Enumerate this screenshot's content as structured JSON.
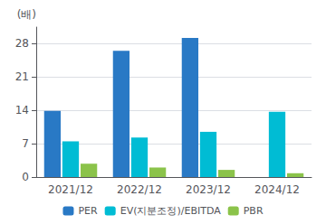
{
  "chart_data": {
    "type": "bar",
    "categories": [
      "2021/12",
      "2022/12",
      "2023/12",
      "2024/12"
    ],
    "series": [
      {
        "name": "PER",
        "color": "#2979c5",
        "values": [
          13.9,
          26.5,
          29.2,
          0
        ]
      },
      {
        "name": "EV(지분조정)/EBITDA",
        "color": "#00bcd4",
        "values": [
          7.5,
          8.3,
          9.5,
          13.7
        ]
      },
      {
        "name": "PBR",
        "color": "#8bc34a",
        "values": [
          2.8,
          2.0,
          1.5,
          0.8
        ]
      }
    ],
    "ylabel": "(배)",
    "ylim": [
      0,
      31.5
    ],
    "yticks": [
      0,
      7,
      14,
      21,
      28
    ],
    "grid": true,
    "legend": "bottom"
  }
}
